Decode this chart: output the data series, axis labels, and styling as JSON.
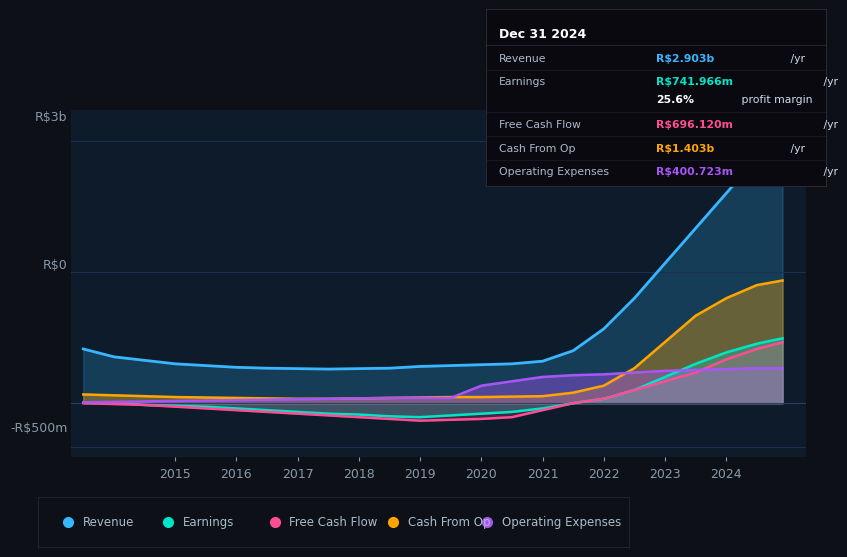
{
  "bg_color": "#0d1117",
  "plot_bg_color": "#0d1b2a",
  "y_label_top": "R$3b",
  "y_label_zero": "R$0",
  "y_label_bottom": "-R$500m",
  "x_years": [
    2013.5,
    2014,
    2014.5,
    2015,
    2015.5,
    2016,
    2016.5,
    2017,
    2017.5,
    2018,
    2018.5,
    2019,
    2019.5,
    2020,
    2020.5,
    2021,
    2021.5,
    2022,
    2022.5,
    2023,
    2023.5,
    2024,
    2024.5,
    2024.92
  ],
  "revenue": [
    620,
    530,
    490,
    450,
    430,
    410,
    400,
    395,
    390,
    395,
    400,
    420,
    430,
    440,
    450,
    480,
    600,
    850,
    1200,
    1600,
    2000,
    2400,
    2800,
    2903
  ],
  "earnings": [
    10,
    5,
    -20,
    -30,
    -40,
    -60,
    -80,
    -100,
    -120,
    -130,
    -150,
    -160,
    -140,
    -120,
    -100,
    -60,
    0,
    50,
    150,
    300,
    450,
    580,
    680,
    742
  ],
  "free_cash_flow": [
    0,
    -10,
    -20,
    -40,
    -60,
    -80,
    -100,
    -120,
    -140,
    -160,
    -180,
    -200,
    -190,
    -180,
    -160,
    -80,
    0,
    50,
    150,
    250,
    350,
    500,
    620,
    696
  ],
  "cash_from_op": [
    100,
    90,
    80,
    70,
    65,
    60,
    55,
    50,
    50,
    55,
    60,
    65,
    70,
    70,
    75,
    80,
    120,
    200,
    400,
    700,
    1000,
    1200,
    1350,
    1403
  ],
  "operating_expenses": [
    10,
    15,
    20,
    25,
    30,
    35,
    40,
    45,
    50,
    55,
    60,
    60,
    60,
    200,
    250,
    300,
    320,
    330,
    350,
    370,
    380,
    390,
    400,
    401
  ],
  "revenue_color": "#38b6ff",
  "earnings_color": "#00e5c8",
  "free_cash_flow_color": "#ff4d94",
  "cash_from_op_color": "#ffa500",
  "operating_expenses_color": "#a855f7",
  "info_box": {
    "title": "Dec 31 2024",
    "rows": [
      {
        "label": "Revenue",
        "value": "R$2.903b",
        "unit": " /yr",
        "color": "#38b6ff"
      },
      {
        "label": "Earnings",
        "value": "R$741.966m",
        "unit": " /yr",
        "color": "#00e5c8"
      },
      {
        "label": "",
        "value": "25.6%",
        "unit": " profit margin",
        "color": "#ffffff"
      },
      {
        "label": "Free Cash Flow",
        "value": "R$696.120m",
        "unit": " /yr",
        "color": "#ff4d94"
      },
      {
        "label": "Cash From Op",
        "value": "R$1.403b",
        "unit": " /yr",
        "color": "#ffa500"
      },
      {
        "label": "Operating Expenses",
        "value": "R$400.723m",
        "unit": " /yr",
        "color": "#a855f7"
      }
    ]
  },
  "legend": [
    {
      "label": "Revenue",
      "color": "#38b6ff"
    },
    {
      "label": "Earnings",
      "color": "#00e5c8"
    },
    {
      "label": "Free Cash Flow",
      "color": "#ff4d94"
    },
    {
      "label": "Cash From Op",
      "color": "#ffa500"
    },
    {
      "label": "Operating Expenses",
      "color": "#a855f7"
    }
  ],
  "x_tick_positions": [
    2015,
    2016,
    2017,
    2018,
    2019,
    2020,
    2021,
    2022,
    2023,
    2024
  ],
  "xlim": [
    2013.3,
    2025.3
  ],
  "ylim": [
    -620,
    3350
  ]
}
